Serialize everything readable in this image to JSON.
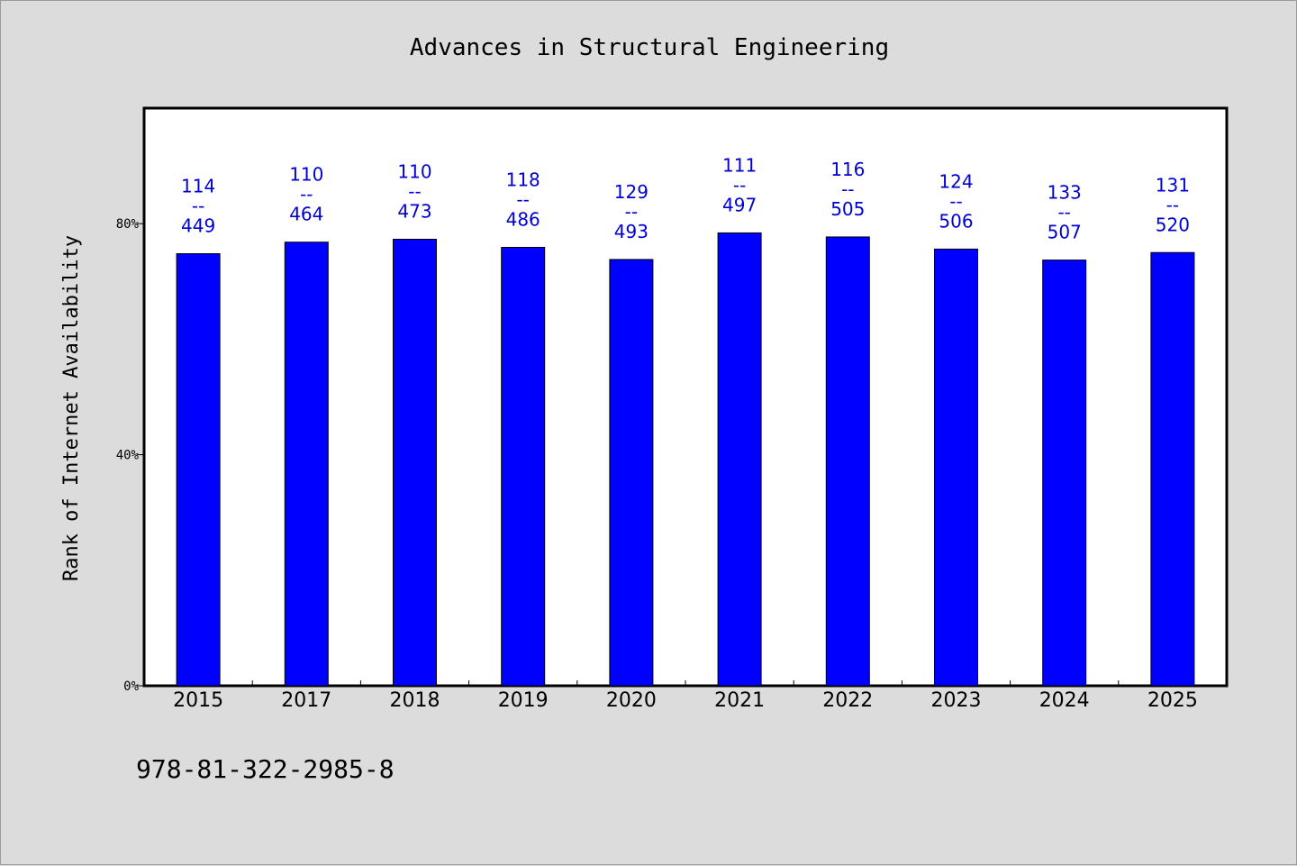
{
  "colors": {
    "background": "#dcdcdc",
    "plot_background": "#ffffff",
    "bar_fill": "#0000ff",
    "label_color": "#0000d6"
  },
  "chart_data": {
    "type": "bar",
    "title": "Advances in Structural Engineering",
    "ylabel": "Rank of Internet Availability",
    "xlabel": "",
    "categories": [
      "2015",
      "2017",
      "2018",
      "2019",
      "2020",
      "2021",
      "2022",
      "2023",
      "2024",
      "2025"
    ],
    "values": [
      74.8,
      76.8,
      77.3,
      75.9,
      73.8,
      78.4,
      77.7,
      75.6,
      73.7,
      75.0
    ],
    "label_top": [
      "114",
      "110",
      "110",
      "118",
      "129",
      "111",
      "116",
      "124",
      "133",
      "131"
    ],
    "label_sep": "--",
    "label_bottom": [
      "449",
      "464",
      "473",
      "486",
      "493",
      "497",
      "505",
      "506",
      "507",
      "520"
    ],
    "yticks": [
      0,
      40,
      80
    ],
    "ytick_labels": [
      "0%",
      "40%",
      "80%"
    ],
    "ylim": [
      0,
      100
    ],
    "grid": false,
    "legend": false
  },
  "footer": {
    "isbn": "978-81-322-2985-8"
  }
}
